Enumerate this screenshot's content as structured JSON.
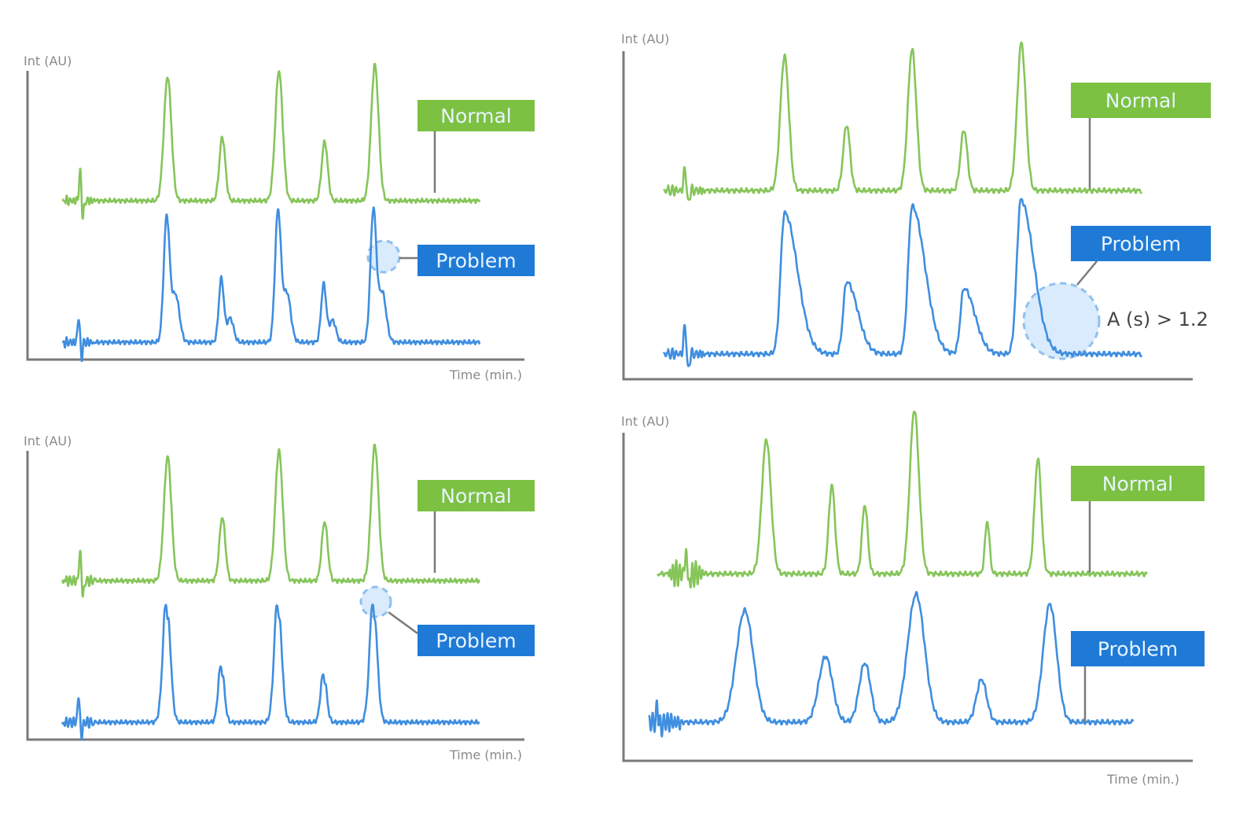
{
  "colors": {
    "normal": "#86c55a",
    "problem": "#3f8ee0",
    "normal_tag": "#7cc142",
    "problem_tag": "#1f7ad6",
    "highlight": "#cfe6fb"
  },
  "chart_data": [
    {
      "type": "line",
      "position": "top-left",
      "ylabel": "Int (AU)",
      "xlabel": "Time (min.)",
      "xlim": [
        0,
        100
      ],
      "ylim": [
        0,
        100
      ],
      "grid": false,
      "problem_type": "shoulder",
      "series": [
        {
          "name": "Normal",
          "baseline": 55,
          "start": 7,
          "end": 91,
          "spike": 10.6,
          "spike_height": 10,
          "peaks": [
            {
              "time": 28.2,
              "height": 43,
              "sigma": 0.75
            },
            {
              "time": 39.2,
              "height": 22,
              "sigma": 0.6
            },
            {
              "time": 50.6,
              "height": 45,
              "sigma": 0.75
            },
            {
              "time": 59.8,
              "height": 20.5,
              "sigma": 0.6
            },
            {
              "time": 69.9,
              "height": 47,
              "sigma": 0.75
            }
          ]
        },
        {
          "name": "Problem",
          "baseline": 6,
          "start": 7,
          "end": 91,
          "spike": 10.3,
          "spike_height": 9,
          "peaks": [
            {
              "time": 28.0,
              "height": 43,
              "sigma": 0.7
            },
            {
              "time": 39.0,
              "height": 22,
              "sigma": 0.6
            },
            {
              "time": 50.4,
              "height": 45,
              "sigma": 0.7
            },
            {
              "time": 59.6,
              "height": 20,
              "sigma": 0.6
            },
            {
              "time": 69.6,
              "height": 45.5,
              "sigma": 0.7
            }
          ]
        }
      ],
      "annotation": ""
    },
    {
      "type": "line",
      "position": "top-right",
      "ylabel": "Int (AU)",
      "xlabel": "",
      "xlim": [
        0,
        100
      ],
      "ylim": [
        0,
        100
      ],
      "grid": false,
      "problem_type": "tailing",
      "series": [
        {
          "name": "Normal",
          "baseline": 57.5,
          "start": 7,
          "end": 91,
          "spike": 10.8,
          "spike_height": 7,
          "peaks": [
            {
              "time": 28.3,
              "height": 41,
              "sigma": 0.75
            },
            {
              "time": 39.2,
              "height": 20,
              "sigma": 0.6
            },
            {
              "time": 50.7,
              "height": 43,
              "sigma": 0.75
            },
            {
              "time": 59.8,
              "height": 18.5,
              "sigma": 0.6
            },
            {
              "time": 69.9,
              "height": 45,
              "sigma": 0.75
            }
          ]
        },
        {
          "name": "Problem",
          "baseline": 7.7,
          "start": 7,
          "end": 91,
          "spike": 10.8,
          "spike_height": 9,
          "peaks": [
            {
              "time": 28.3,
              "height": 43,
              "sigma": 0.7
            },
            {
              "time": 39.2,
              "height": 22,
              "sigma": 0.6
            },
            {
              "time": 50.7,
              "height": 45,
              "sigma": 0.7
            },
            {
              "time": 59.8,
              "height": 20,
              "sigma": 0.6
            },
            {
              "time": 69.8,
              "height": 47,
              "sigma": 0.7
            }
          ]
        }
      ],
      "annotation": "A (s) > 1.2"
    },
    {
      "type": "line",
      "position": "bottom-left",
      "ylabel": "Int (AU)",
      "xlabel": "Time (min.)",
      "xlim": [
        0,
        100
      ],
      "ylim": [
        0,
        100
      ],
      "grid": false,
      "problem_type": "split",
      "series": [
        {
          "name": "Normal",
          "baseline": 55,
          "start": 7,
          "end": 91,
          "spike": 10.6,
          "spike_height": 10,
          "peaks": [
            {
              "time": 28.2,
              "height": 43,
              "sigma": 0.75
            },
            {
              "time": 39.2,
              "height": 22,
              "sigma": 0.6
            },
            {
              "time": 50.6,
              "height": 45,
              "sigma": 0.75
            },
            {
              "time": 59.8,
              "height": 20.5,
              "sigma": 0.6
            },
            {
              "time": 69.9,
              "height": 47,
              "sigma": 0.75
            }
          ]
        },
        {
          "name": "Problem",
          "baseline": 6,
          "start": 7,
          "end": 91,
          "spike": 10.3,
          "spike_height": 9,
          "peaks": [
            {
              "time": 28.0,
              "height": 42,
              "sigma": 0.75
            },
            {
              "time": 39.0,
              "height": 20,
              "sigma": 0.6
            },
            {
              "time": 50.4,
              "height": 42,
              "sigma": 0.75
            },
            {
              "time": 59.6,
              "height": 17,
              "sigma": 0.6
            },
            {
              "time": 69.6,
              "height": 42,
              "sigma": 0.75
            }
          ]
        }
      ],
      "annotation": ""
    },
    {
      "type": "line",
      "position": "bottom-right",
      "ylabel": "Int (AU)",
      "xlabel": "Time (min.)",
      "xlim": [
        0,
        100
      ],
      "ylim": [
        0,
        100
      ],
      "grid": false,
      "problem_type": "broadening",
      "series": [
        {
          "name": "Normal",
          "baseline": 57,
          "start": 6,
          "end": 92,
          "spike": 11,
          "spike_height": 6,
          "peaks": [
            {
              "time": 25.1,
              "height": 41,
              "sigma": 0.8
            },
            {
              "time": 36.6,
              "height": 27,
              "sigma": 0.55
            },
            {
              "time": 42.4,
              "height": 21,
              "sigma": 0.5
            },
            {
              "time": 51.1,
              "height": 50,
              "sigma": 0.8
            },
            {
              "time": 63.9,
              "height": 16,
              "sigma": 0.4
            },
            {
              "time": 72.8,
              "height": 35,
              "sigma": 0.6
            }
          ]
        },
        {
          "name": "Problem",
          "baseline": 11.8,
          "start": 4.5,
          "end": 89.5,
          "spike": 6,
          "spike_height": 4,
          "peaks": [
            {
              "time": 21.3,
              "height": 34,
              "sigma": 1.5
            },
            {
              "time": 35.5,
              "height": 20,
              "sigma": 1.2
            },
            {
              "time": 42.4,
              "height": 18,
              "sigma": 1.0
            },
            {
              "time": 51.4,
              "height": 39,
              "sigma": 1.5
            },
            {
              "time": 62.9,
              "height": 13,
              "sigma": 0.9
            },
            {
              "time": 74.9,
              "height": 36,
              "sigma": 1.2
            }
          ]
        }
      ],
      "annotation": ""
    }
  ]
}
